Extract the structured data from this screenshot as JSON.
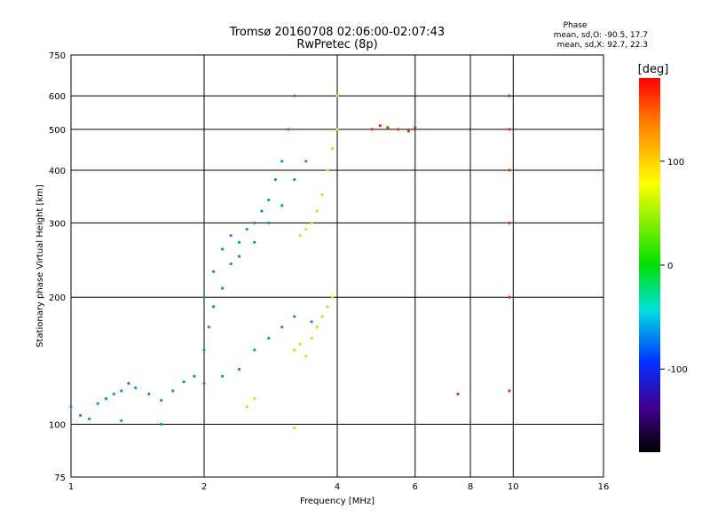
{
  "chart_data": {
    "type": "scatter",
    "title": "Tromsø 20160708 02:06:00-02:07:43",
    "subtitle": "RwPretec (8p)",
    "xlabel": "Frequency [MHz]",
    "ylabel": "Stationary phase Virtual Height [km]",
    "xscale": "log",
    "yscale": "log",
    "xlim": [
      1,
      16
    ],
    "ylim": [
      75,
      750
    ],
    "xticks": [
      1,
      2,
      4,
      6,
      8,
      10,
      16
    ],
    "yticks": [
      75,
      100,
      200,
      300,
      400,
      500,
      600,
      750
    ],
    "grid": true,
    "phase_info": {
      "heading": "Phase",
      "line1": "mean, sd,O: -90.5, 17.7",
      "line2": "mean, sd,X:  92.7, 22.3"
    },
    "colorbar": {
      "label": "[deg]",
      "range": [
        -180,
        180
      ],
      "ticks": [
        100,
        0,
        -100
      ]
    },
    "series": [
      {
        "color_phase_deg": -100,
        "points": [
          [
            1.0,
            110
          ],
          [
            1.05,
            105
          ],
          [
            1.1,
            103
          ],
          [
            1.15,
            112
          ],
          [
            1.2,
            115
          ],
          [
            1.25,
            118
          ],
          [
            1.3,
            120
          ],
          [
            1.35,
            125
          ],
          [
            1.4,
            122
          ],
          [
            1.5,
            118
          ],
          [
            1.6,
            114
          ],
          [
            1.7,
            120
          ],
          [
            1.8,
            126
          ],
          [
            1.9,
            130
          ],
          [
            2.0,
            150
          ],
          [
            2.05,
            170
          ],
          [
            2.1,
            190
          ],
          [
            2.2,
            210
          ],
          [
            2.3,
            240
          ],
          [
            2.4,
            270
          ],
          [
            2.5,
            290
          ],
          [
            2.6,
            300
          ],
          [
            2.7,
            320
          ],
          [
            2.8,
            340
          ],
          [
            2.9,
            380
          ],
          [
            3.0,
            420
          ],
          [
            3.1,
            500
          ],
          [
            3.2,
            600
          ],
          [
            2.0,
            200
          ],
          [
            2.1,
            230
          ],
          [
            2.2,
            260
          ],
          [
            2.3,
            280
          ],
          [
            2.4,
            250
          ],
          [
            2.6,
            270
          ],
          [
            2.8,
            300
          ],
          [
            3.0,
            330
          ],
          [
            3.2,
            380
          ],
          [
            3.4,
            420
          ],
          [
            1.3,
            102
          ],
          [
            1.6,
            100
          ],
          [
            2.0,
            125
          ],
          [
            2.2,
            130
          ],
          [
            2.4,
            135
          ],
          [
            2.6,
            150
          ],
          [
            2.8,
            160
          ],
          [
            3.0,
            170
          ],
          [
            3.2,
            180
          ],
          [
            3.5,
            175
          ]
        ]
      },
      {
        "color_phase_deg": 100,
        "points": [
          [
            3.2,
            150
          ],
          [
            3.3,
            155
          ],
          [
            3.4,
            145
          ],
          [
            3.5,
            160
          ],
          [
            3.6,
            170
          ],
          [
            3.7,
            180
          ],
          [
            3.8,
            190
          ],
          [
            3.9,
            200
          ],
          [
            3.3,
            280
          ],
          [
            3.4,
            290
          ],
          [
            3.5,
            300
          ],
          [
            3.6,
            320
          ],
          [
            3.7,
            350
          ],
          [
            3.8,
            400
          ],
          [
            3.9,
            450
          ],
          [
            4.0,
            500
          ],
          [
            4.0,
            600
          ],
          [
            2.5,
            110
          ],
          [
            2.6,
            115
          ],
          [
            3.2,
            98
          ]
        ]
      },
      {
        "color_phase_deg": 160,
        "points": [
          [
            4.8,
            500
          ],
          [
            5.0,
            510
          ],
          [
            5.2,
            505
          ],
          [
            5.5,
            500
          ],
          [
            5.8,
            495
          ],
          [
            6.0,
            505
          ],
          [
            9.8,
            600
          ],
          [
            9.8,
            500
          ],
          [
            9.8,
            400
          ],
          [
            9.8,
            300
          ],
          [
            9.8,
            200
          ],
          [
            9.8,
            120
          ],
          [
            7.5,
            118
          ]
        ]
      }
    ]
  }
}
